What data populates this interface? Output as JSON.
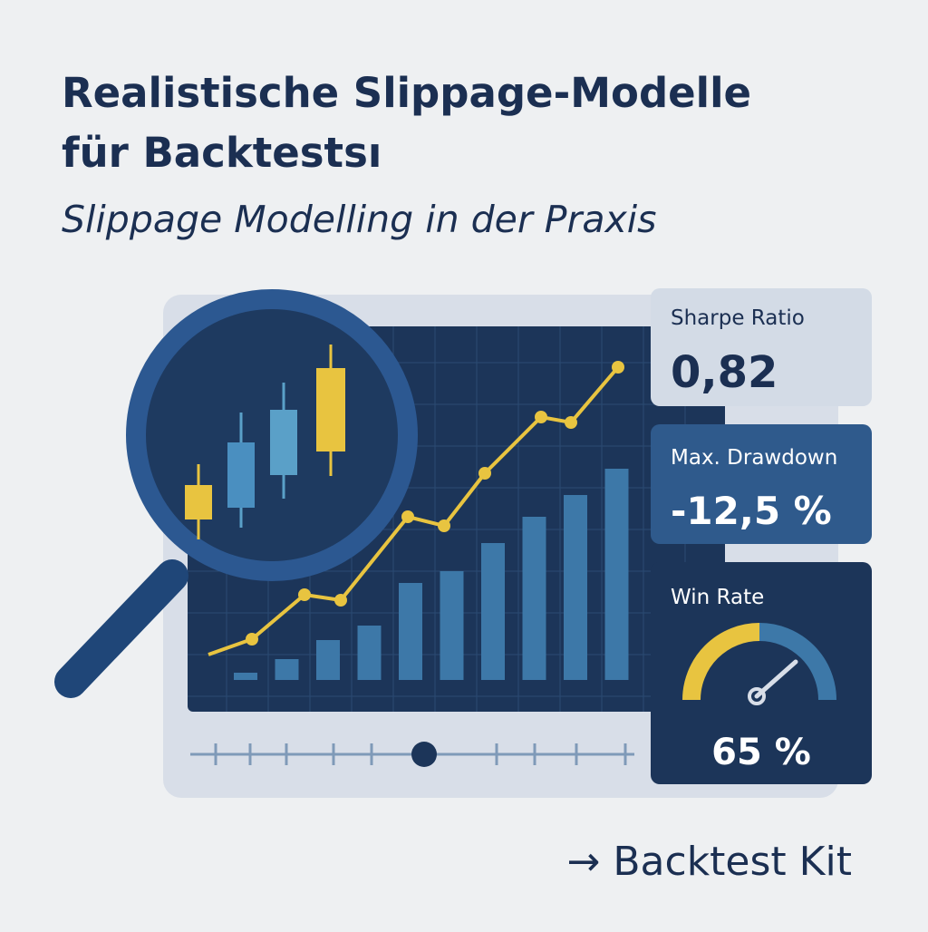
{
  "header": {
    "title_lines": [
      "Realistische Slippage-Modelle",
      "für Backtestsı"
    ],
    "subtitle": "Slippage Modelling in der Praxis"
  },
  "metrics": [
    {
      "label": "Sharpe Ratio",
      "value": "0,82"
    },
    {
      "label": "Max. Drawdown",
      "value": "-12,5 %"
    },
    {
      "label": "Win Rate",
      "value": "65 %"
    }
  ],
  "footer": {
    "link": "→ Backtest Kit"
  }
}
